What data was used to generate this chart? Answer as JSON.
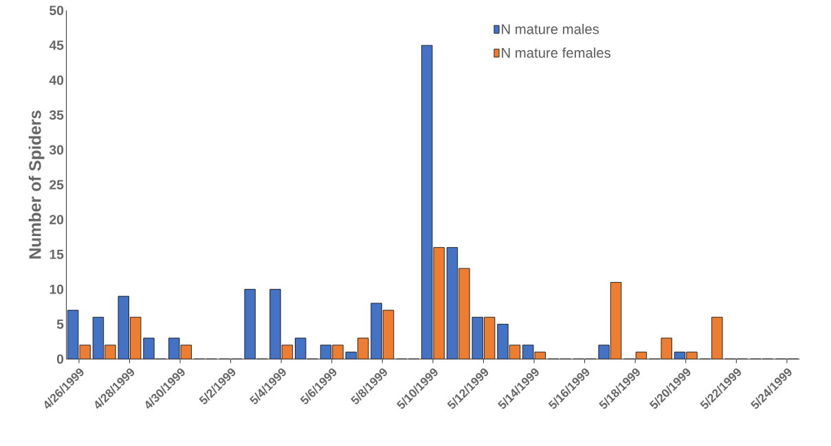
{
  "chart_data": {
    "type": "bar",
    "ylabel": "Number of Spiders",
    "categories": [
      "4/26/1999",
      null,
      "4/28/1999",
      null,
      "4/30/1999",
      null,
      "5/2/1999",
      null,
      "5/4/1999",
      null,
      "5/6/1999",
      null,
      "5/8/1999",
      null,
      "5/10/1999",
      null,
      "5/12/1999",
      null,
      "5/14/1999",
      null,
      "5/16/1999",
      null,
      "5/18/1999",
      null,
      "5/20/1999",
      null,
      "5/22/1999",
      null,
      "5/24/1999"
    ],
    "series": [
      {
        "name": "N mature males",
        "color": "#4472c4",
        "values": [
          7,
          6,
          9,
          3,
          3,
          0,
          0,
          10,
          10,
          3,
          2,
          1,
          8,
          0,
          45,
          16,
          6,
          5,
          2,
          0,
          0,
          2,
          0,
          0,
          1,
          0,
          0,
          0,
          0
        ]
      },
      {
        "name": "N mature females",
        "color": "#ed7d31",
        "values": [
          2,
          2,
          6,
          0,
          2,
          0,
          0,
          0,
          2,
          0,
          2,
          3,
          7,
          0,
          16,
          13,
          6,
          2,
          1,
          0,
          0,
          11,
          1,
          3,
          1,
          6,
          0,
          0,
          0
        ]
      }
    ],
    "ylim": [
      0,
      50
    ],
    "yticks": [
      0,
      5,
      10,
      15,
      20,
      25,
      30,
      35,
      40,
      45,
      50
    ],
    "grid": false,
    "legend": "top right"
  }
}
